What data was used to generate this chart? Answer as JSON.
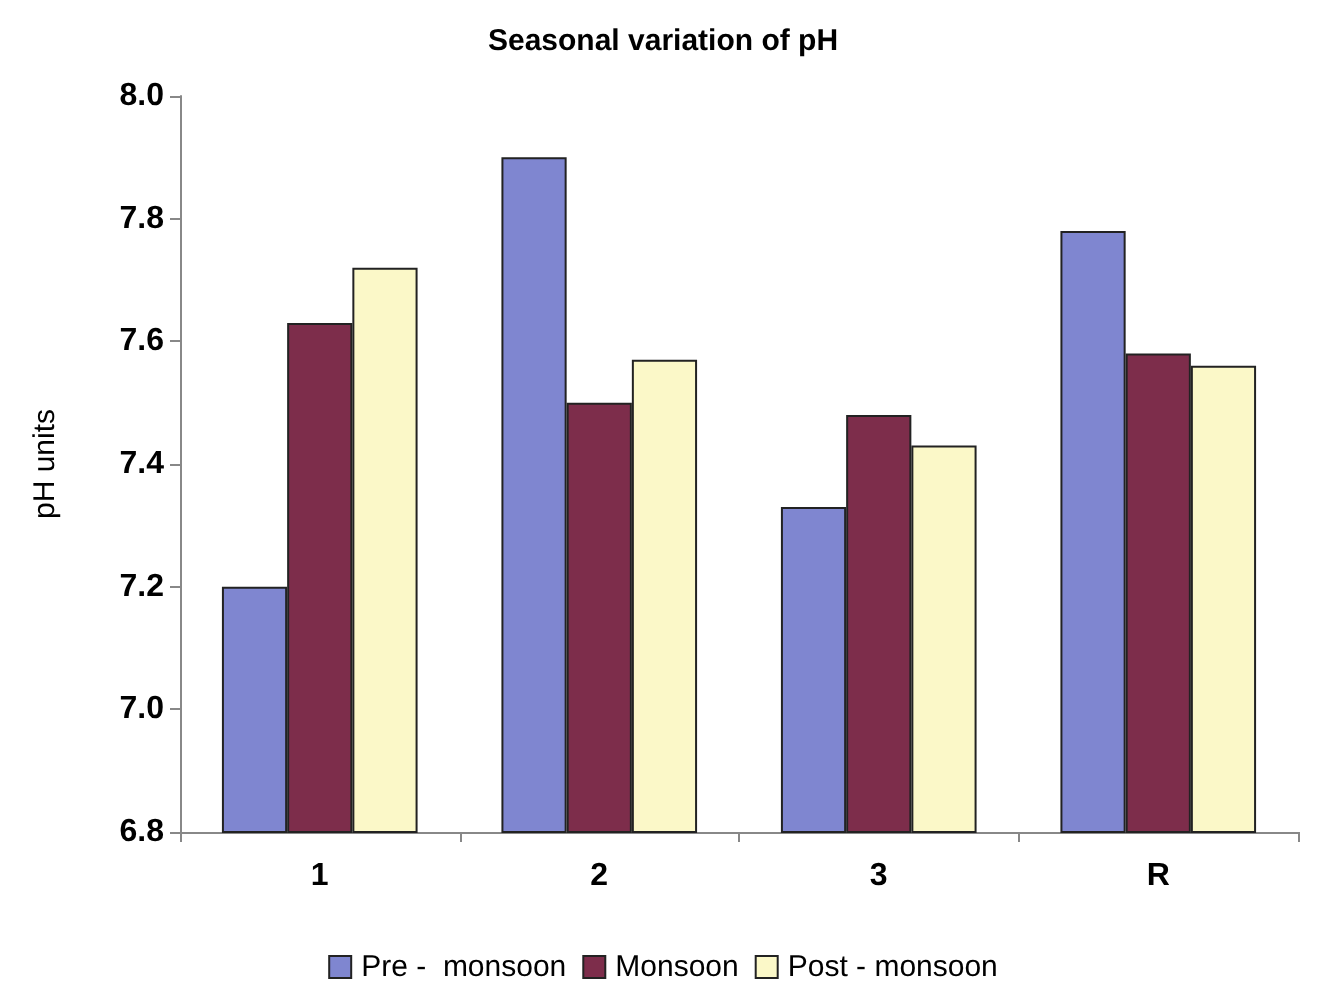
{
  "chart_data": {
    "type": "bar",
    "title": "Seasonal variation of pH",
    "ylabel": "pH units",
    "categories": [
      "1",
      "2",
      "3",
      "R"
    ],
    "series": [
      {
        "name": "Pre -  monsoon",
        "color": "#7f86d0",
        "values": [
          7.2,
          7.9,
          7.33,
          7.78
        ]
      },
      {
        "name": "Monsoon",
        "color": "#7d2d4b",
        "values": [
          7.63,
          7.5,
          7.48,
          7.58
        ]
      },
      {
        "name": "Post - monsoon",
        "color": "#fbf8c8",
        "values": [
          7.72,
          7.57,
          7.43,
          7.56
        ]
      }
    ],
    "ylim": [
      6.8,
      8.0
    ],
    "yticks": [
      6.8,
      {
        "value": 7,
        "label": "7.0"
      },
      7.2,
      7.4,
      7.6,
      7.8,
      {
        "value": 8,
        "label": "8.0"
      }
    ],
    "grid": false,
    "legend": "bottom"
  }
}
